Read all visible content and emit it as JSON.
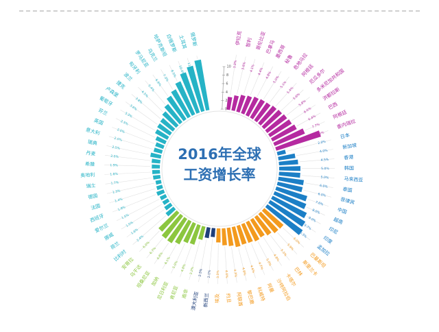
{
  "title_line1": "2016年全球",
  "title_line2": "工资增长率",
  "colors": {
    "magenta": "#b52aa0",
    "blue": "#1c7fc6",
    "orange": "#f39a1e",
    "yellow": "#f2d21c",
    "navy": "#1f3f7a",
    "green": "#8cc63f",
    "teal": "#26b3c6",
    "label": "#2d6fb3"
  },
  "chart_data": {
    "type": "bar",
    "layout": "radial",
    "radial_axis": {
      "min": 0,
      "max": 12,
      "ticks": [
        "0",
        "2",
        "4",
        "6",
        "8",
        "10"
      ]
    },
    "categories": [
      "伊拉克",
      "智利",
      "哥伦比亚",
      "巴拿马",
      "墨西哥",
      "秘鲁",
      "危地马拉",
      "阿根廷",
      "厄瓜多尔",
      "多米尼加共和国",
      "洪都拉斯",
      "巴西",
      "阿根廷",
      "委内瑞拉",
      "日本",
      "新加坡",
      "香港",
      "韩国",
      "马来西亚",
      "泰国",
      "菲律宾",
      "中国",
      "越南",
      "印尼",
      "印度",
      "孟加拉",
      "巴基斯坦",
      "斯里兰卡",
      "巴林",
      "卡塔尔",
      "沙特阿拉伯",
      "阿曼",
      "科威特",
      "黎巴嫩",
      "阿联酋",
      "约旦",
      "埃及",
      "新西兰",
      "澳大利亚",
      "南非",
      "肯尼亚",
      "尼日利亚",
      "加纳",
      "坦桑尼亚",
      "乌干达",
      "安哥拉",
      "比利时",
      "荷兰",
      "挪威",
      "爱尔兰",
      "西班牙",
      "法国",
      "德国",
      "瑞士",
      "奥地利",
      "希腊",
      "丹麦",
      "瑞典",
      "意大利",
      "英国",
      "芬兰",
      "葡萄牙",
      "卢森堡",
      "捷克",
      "波兰",
      "匈牙利",
      "罗马尼亚",
      "乌克兰",
      "哈萨克斯坦",
      "白俄罗斯",
      "土耳其",
      "俄罗斯"
    ],
    "values": [
      3.0,
      3.6,
      4.1,
      4.4,
      4.8,
      5.0,
      5.1,
      5.4,
      5.6,
      5.8,
      6.0,
      6.4,
      7.7,
      11.0,
      2.0,
      4.0,
      4.5,
      5.0,
      5.0,
      6.0,
      6.0,
      7.6,
      8.0,
      9.0,
      9.7,
      10.3,
      6.0,
      5.9,
      5.3,
      4.8,
      5.0,
      4.7,
      4.6,
      4.8,
      4.3,
      4.0,
      3.3,
      2.1,
      2.5,
      3.2,
      4.8,
      5.0,
      6.1,
      6.8,
      6.7,
      6.0,
      2.4,
      1.8,
      1.5,
      1.5,
      1.8,
      1.4,
      1.3,
      1.7,
      1.8,
      1.9,
      2.0,
      2.5,
      2.0,
      2.0,
      2.5,
      3.3,
      3.6,
      3.8,
      4.5,
      5.4,
      6.6,
      7.3,
      8.5,
      10.0,
      11.0,
      13.1
    ],
    "value_labels": [
      "3.0%",
      "3.6%",
      "4.1%",
      "4.4%",
      "4.8%",
      "5.0%",
      "5.1%",
      "5.4%",
      "5.6%",
      "5.8%",
      "6.0%",
      "6.4%",
      "7.7%",
      "11.0%",
      "2.0%",
      "4.0%",
      "4.5%",
      "5.0%",
      "5.0%",
      "6.0%",
      "6.0%",
      "7.6%",
      "8.0%",
      "9.0%",
      "9.7%",
      "10.3%",
      "6.0%",
      "5.9%",
      "5.3%",
      "4.8%",
      "5.0%",
      "4.7%",
      "4.6%",
      "4.8%",
      "4.3%",
      "4.0%",
      "3.3%",
      "2.1%",
      "2.5%",
      "3.2%",
      "4.8%",
      "5.0%",
      "6.1%",
      "6.8%",
      "6.7%",
      "6.0%",
      "2.4%",
      "1.8%",
      "1.5%",
      "1.5%",
      "1.8%",
      "1.4%",
      "1.3%",
      "1.7%",
      "1.8%",
      "1.9%",
      "2.0%",
      "2.5%",
      "2.0%",
      "2.0%",
      "2.5%",
      "3.3%",
      "3.6%",
      "3.8%",
      "4.5%",
      "5.4%",
      "6.6%",
      "7.3%",
      "8.5%",
      "10.0%",
      "11.0%",
      "13.1%"
    ],
    "groups": [
      {
        "color": "magenta",
        "count": 14
      },
      {
        "color": "blue",
        "count": 12
      },
      {
        "color": "orange",
        "count": 11
      },
      {
        "color": "yellow",
        "count": 0
      },
      {
        "color": "navy",
        "count": 2
      },
      {
        "color": "green",
        "count": 7
      },
      {
        "color": "teal",
        "count": 26
      }
    ]
  }
}
